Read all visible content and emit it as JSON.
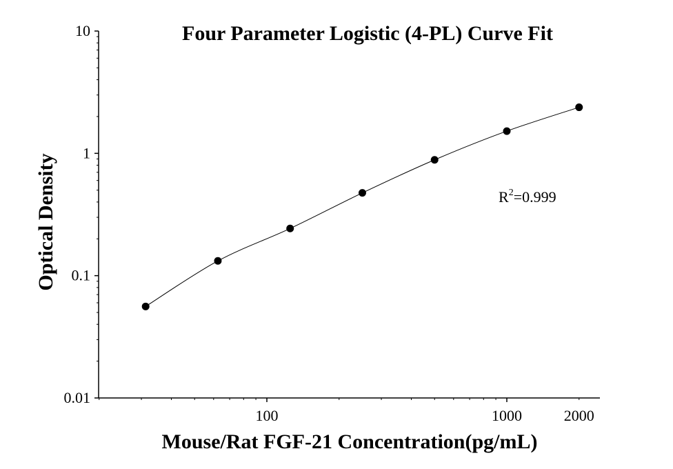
{
  "chart_data": {
    "type": "scatter",
    "title": "Four Parameter Logistic (4-PL) Curve Fit",
    "xlabel": "Mouse/Rat FGF-21 Concentration(pg/mL)",
    "ylabel": "Optical Density",
    "x_scale": "log",
    "y_scale": "log",
    "xlim": [
      20,
      2500
    ],
    "ylim": [
      0.01,
      10
    ],
    "x_ticks": [
      {
        "value": 100,
        "label": "100"
      },
      {
        "value": 1000,
        "label": "1000"
      },
      {
        "value": 2000,
        "label": "2000"
      }
    ],
    "y_ticks": [
      {
        "value": 0.01,
        "label": "0.01"
      },
      {
        "value": 0.1,
        "label": "0.1"
      },
      {
        "value": 1,
        "label": "1"
      },
      {
        "value": 10,
        "label": "10"
      }
    ],
    "grid": false,
    "series": [
      {
        "points": [
          {
            "x": 31.25,
            "y": 0.056
          },
          {
            "x": 62.5,
            "y": 0.132
          },
          {
            "x": 125,
            "y": 0.243
          },
          {
            "x": 250,
            "y": 0.475
          },
          {
            "x": 500,
            "y": 0.885
          },
          {
            "x": 1000,
            "y": 1.52
          },
          {
            "x": 2000,
            "y": 2.38
          }
        ],
        "color": "#000000"
      }
    ],
    "annotation": {
      "base": "R",
      "sup": "2",
      "rest": "=0.999"
    }
  }
}
